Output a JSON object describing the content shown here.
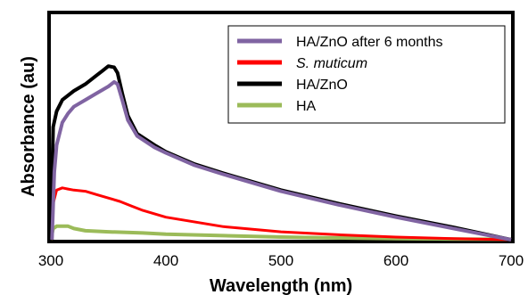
{
  "chart_data": {
    "type": "line",
    "xlabel": "Wavelength (nm)",
    "ylabel": "Absorbance (au)",
    "xlim": [
      300,
      700
    ],
    "ylim": [
      0,
      1
    ],
    "x_ticks": [
      "300",
      "400",
      "500",
      "600",
      "700"
    ],
    "y_ticks_shown": false,
    "grid": false,
    "legend_position": "top-right",
    "series": [
      {
        "name": "HA/ZnO after 6 months",
        "color": "#8064a2",
        "points": [
          [
            301,
            0.0
          ],
          [
            303,
            0.3
          ],
          [
            305,
            0.42
          ],
          [
            310,
            0.52
          ],
          [
            315,
            0.56
          ],
          [
            320,
            0.59
          ],
          [
            330,
            0.62
          ],
          [
            340,
            0.65
          ],
          [
            350,
            0.68
          ],
          [
            355,
            0.7
          ],
          [
            358,
            0.69
          ],
          [
            362,
            0.62
          ],
          [
            367,
            0.53
          ],
          [
            375,
            0.46
          ],
          [
            390,
            0.41
          ],
          [
            400,
            0.385
          ],
          [
            425,
            0.33
          ],
          [
            450,
            0.29
          ],
          [
            500,
            0.215
          ],
          [
            550,
            0.155
          ],
          [
            600,
            0.1
          ],
          [
            650,
            0.05
          ],
          [
            700,
            0.0
          ]
        ]
      },
      {
        "name": "S. muticum",
        "italic": true,
        "color": "#ff0000",
        "points": [
          [
            300,
            0.0
          ],
          [
            302,
            0.16
          ],
          [
            305,
            0.22
          ],
          [
            310,
            0.23
          ],
          [
            315,
            0.225
          ],
          [
            320,
            0.22
          ],
          [
            330,
            0.215
          ],
          [
            340,
            0.2
          ],
          [
            350,
            0.185
          ],
          [
            360,
            0.17
          ],
          [
            370,
            0.15
          ],
          [
            380,
            0.13
          ],
          [
            400,
            0.1
          ],
          [
            450,
            0.058
          ],
          [
            500,
            0.035
          ],
          [
            550,
            0.022
          ],
          [
            600,
            0.012
          ],
          [
            650,
            0.005
          ],
          [
            700,
            0.0
          ]
        ]
      },
      {
        "name": "HA/ZnO",
        "color": "#000000",
        "points": [
          [
            300,
            0.0
          ],
          [
            302,
            0.5
          ],
          [
            305,
            0.57
          ],
          [
            310,
            0.62
          ],
          [
            320,
            0.66
          ],
          [
            330,
            0.69
          ],
          [
            340,
            0.73
          ],
          [
            345,
            0.75
          ],
          [
            350,
            0.77
          ],
          [
            355,
            0.765
          ],
          [
            358,
            0.74
          ],
          [
            362,
            0.65
          ],
          [
            367,
            0.55
          ],
          [
            375,
            0.47
          ],
          [
            390,
            0.42
          ],
          [
            400,
            0.39
          ],
          [
            425,
            0.335
          ],
          [
            450,
            0.295
          ],
          [
            500,
            0.22
          ],
          [
            550,
            0.16
          ],
          [
            600,
            0.105
          ],
          [
            650,
            0.055
          ],
          [
            700,
            0.0
          ]
        ]
      },
      {
        "name": "HA",
        "color": "#9bbb59",
        "points": [
          [
            300,
            0.0
          ],
          [
            302,
            0.05
          ],
          [
            305,
            0.06
          ],
          [
            315,
            0.06
          ],
          [
            320,
            0.05
          ],
          [
            330,
            0.04
          ],
          [
            350,
            0.035
          ],
          [
            380,
            0.03
          ],
          [
            400,
            0.025
          ],
          [
            450,
            0.018
          ],
          [
            500,
            0.012
          ],
          [
            550,
            0.008
          ],
          [
            600,
            0.005
          ],
          [
            650,
            0.003
          ],
          [
            700,
            0.002
          ]
        ]
      }
    ]
  }
}
